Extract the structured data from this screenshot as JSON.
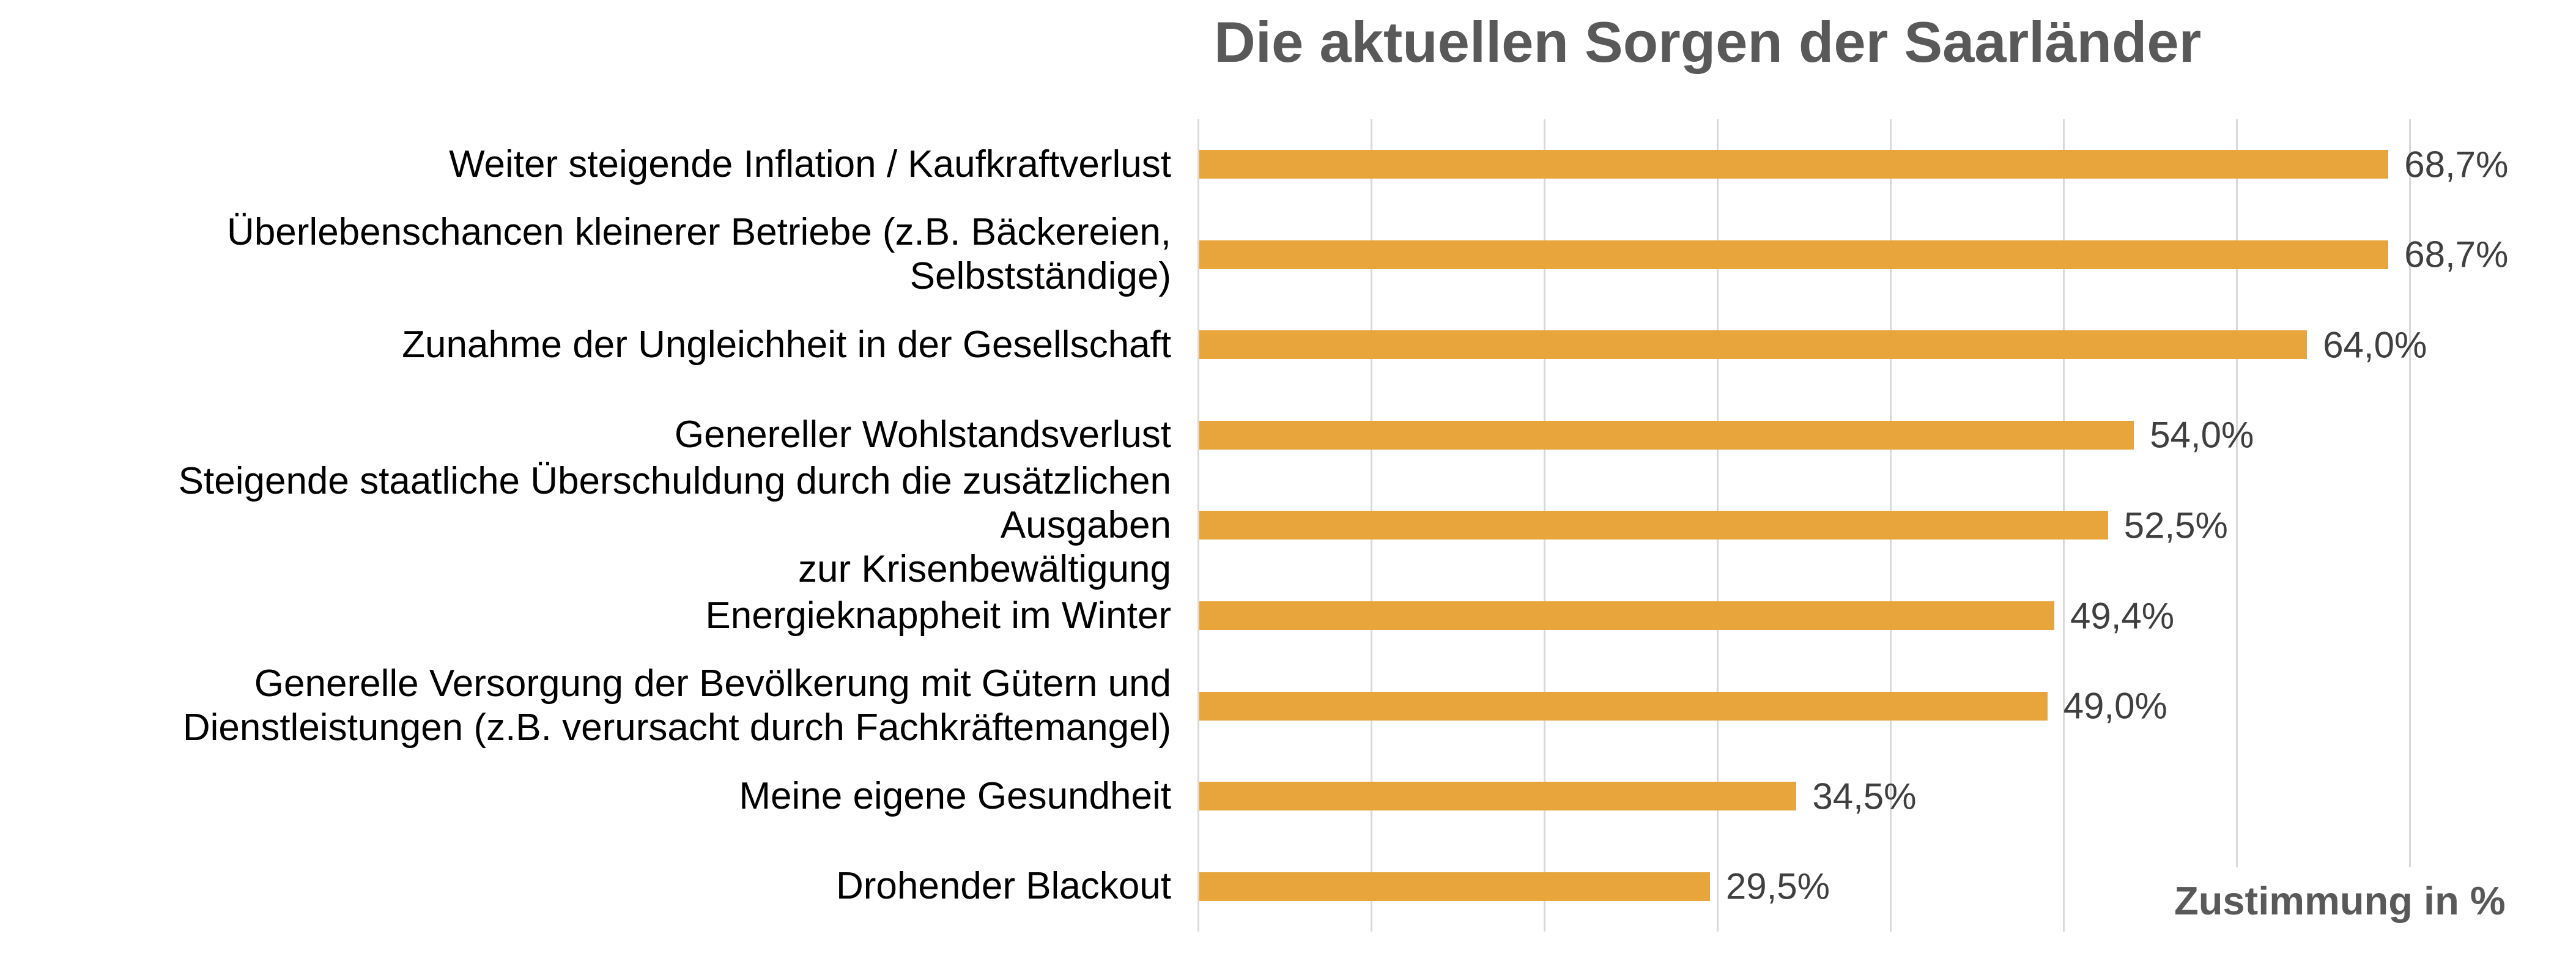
{
  "chart_data": {
    "type": "bar",
    "orientation": "horizontal",
    "title": "Die aktuellen Sorgen der Saarländer",
    "xlabel": "Zustimmung in %",
    "categories": [
      "Weiter steigende Inflation / Kaufkraftverlust",
      "Überlebenschancen kleinerer Betriebe (z.B. Bäckereien,\nSelbstständige)",
      "Zunahme der Ungleichheit in der Gesellschaft",
      "Genereller Wohlstandsverlust",
      "Steigende staatliche Überschuldung durch die zusätzlichen Ausgaben\nzur Krisenbewältigung",
      "Energieknappheit im Winter",
      "Generelle Versorgung der Bevölkerung mit Gütern und\nDienstleistungen (z.B. verursacht durch Fachkräftemangel)",
      "Meine eigene Gesundheit",
      "Drohender Blackout"
    ],
    "values": [
      68.7,
      68.7,
      64.0,
      54.0,
      52.5,
      49.4,
      49.0,
      34.5,
      29.5
    ],
    "value_labels": [
      "68,7%",
      "68,7%",
      "64,0%",
      "54,0%",
      "52,5%",
      "49,4%",
      "49,0%",
      "34,5%",
      "29,5%"
    ],
    "xlim": [
      0,
      70
    ],
    "grid_step": 10,
    "grid": true,
    "legend": "none",
    "colors": {
      "bar": "#E8A53C",
      "title": "#595959",
      "category_labels": "#000000",
      "value_labels": "#3F3F3F",
      "gridlines": "#D9D9D9",
      "background": "#FFFFFF"
    }
  }
}
